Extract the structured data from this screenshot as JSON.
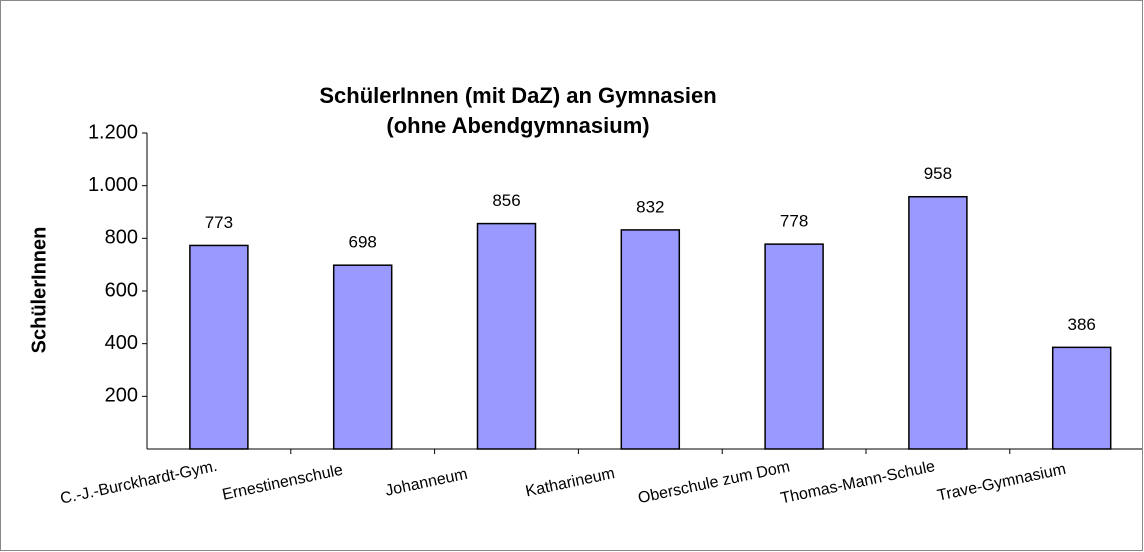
{
  "chart_data": {
    "type": "bar",
    "title": [
      "SchülerInnen (mit DaZ) an Gymnasien",
      "(ohne Abendgymnasium)"
    ],
    "ylabel": "SchülerInnen",
    "categories": [
      "C.-J.-Burckhardt-Gym.",
      "Ernestinenschule",
      "Johanneum",
      "Katharineum",
      "Oberschule zum Dom",
      "Thomas-Mann-Schule",
      "Trave-Gymnasium"
    ],
    "values": [
      773,
      698,
      856,
      832,
      778,
      958,
      386
    ],
    "color": "#9999ff",
    "ylim": [
      0,
      1200
    ],
    "yticks": [
      200,
      400,
      600,
      800,
      {
        "value": 1000,
        "label": "1.000"
      },
      {
        "value": 1200,
        "label": "1.200"
      }
    ],
    "grid": false
  }
}
